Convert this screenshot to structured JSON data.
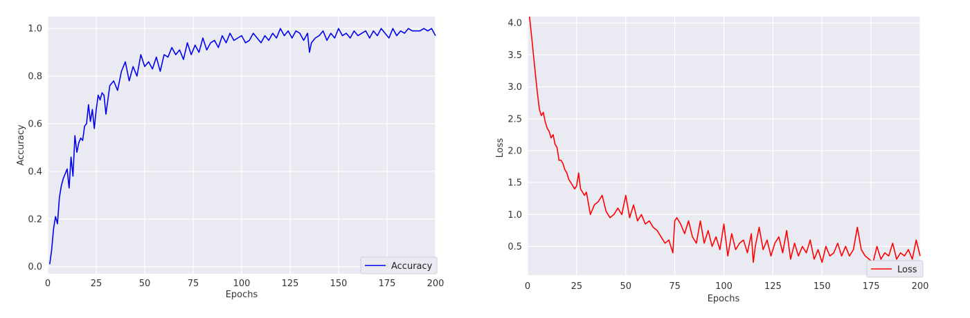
{
  "chart_data": [
    {
      "type": "line",
      "xlabel": "Epochs",
      "ylabel": "Accuracy",
      "xlim": [
        0,
        200
      ],
      "ylim": [
        -0.03,
        1.05
      ],
      "x_ticks": [
        0,
        25,
        50,
        75,
        100,
        125,
        150,
        175,
        200
      ],
      "y_ticks": [
        0.0,
        0.2,
        0.4,
        0.6,
        0.8,
        1.0
      ],
      "y_tick_labels": [
        "0.0",
        "0.2",
        "0.4",
        "0.6",
        "0.8",
        "1.0"
      ],
      "grid": true,
      "legend": "lower-right",
      "series": [
        {
          "name": "Accuracy",
          "color": "#0000ee",
          "x": [
            1,
            2,
            3,
            4,
            5,
            6,
            7,
            8,
            9,
            10,
            11,
            12,
            13,
            14,
            15,
            16,
            17,
            18,
            19,
            20,
            21,
            22,
            23,
            24,
            25,
            26,
            27,
            28,
            29,
            30,
            32,
            34,
            36,
            38,
            40,
            42,
            44,
            46,
            48,
            50,
            52,
            54,
            56,
            58,
            60,
            62,
            64,
            66,
            68,
            70,
            72,
            74,
            76,
            78,
            80,
            82,
            84,
            86,
            88,
            90,
            92,
            94,
            96,
            98,
            100,
            102,
            104,
            106,
            108,
            110,
            112,
            114,
            116,
            118,
            120,
            122,
            124,
            126,
            128,
            130,
            132,
            134,
            135,
            136,
            138,
            140,
            142,
            144,
            146,
            148,
            150,
            152,
            154,
            156,
            158,
            160,
            162,
            164,
            166,
            168,
            170,
            172,
            174,
            176,
            178,
            180,
            182,
            184,
            186,
            188,
            190,
            192,
            194,
            196,
            198,
            200
          ],
          "values": [
            0.01,
            0.07,
            0.16,
            0.21,
            0.18,
            0.29,
            0.34,
            0.37,
            0.39,
            0.41,
            0.33,
            0.46,
            0.38,
            0.55,
            0.48,
            0.52,
            0.54,
            0.53,
            0.59,
            0.6,
            0.68,
            0.61,
            0.66,
            0.58,
            0.66,
            0.72,
            0.7,
            0.73,
            0.72,
            0.64,
            0.76,
            0.78,
            0.74,
            0.82,
            0.86,
            0.78,
            0.84,
            0.8,
            0.89,
            0.84,
            0.86,
            0.83,
            0.88,
            0.82,
            0.89,
            0.88,
            0.92,
            0.89,
            0.91,
            0.87,
            0.94,
            0.89,
            0.93,
            0.9,
            0.96,
            0.91,
            0.94,
            0.95,
            0.92,
            0.97,
            0.94,
            0.98,
            0.95,
            0.96,
            0.97,
            0.94,
            0.95,
            0.98,
            0.96,
            0.94,
            0.97,
            0.95,
            0.98,
            0.96,
            1.0,
            0.97,
            0.99,
            0.96,
            0.99,
            0.98,
            0.95,
            0.98,
            0.9,
            0.94,
            0.96,
            0.97,
            0.99,
            0.95,
            0.98,
            0.96,
            1.0,
            0.97,
            0.98,
            0.96,
            0.99,
            0.97,
            0.98,
            0.99,
            0.96,
            0.99,
            0.97,
            1.0,
            0.98,
            0.96,
            1.0,
            0.97,
            0.99,
            0.98,
            1.0,
            0.99,
            0.99,
            0.99,
            1.0,
            0.99,
            1.0,
            0.97
          ]
        }
      ]
    },
    {
      "type": "line",
      "xlabel": "Epochs",
      "ylabel": "Loss",
      "xlim": [
        0,
        200
      ],
      "ylim": [
        0.05,
        4.1
      ],
      "x_ticks": [
        0,
        25,
        50,
        75,
        100,
        125,
        150,
        175,
        200
      ],
      "y_ticks": [
        0.5,
        1.0,
        1.5,
        2.0,
        2.5,
        3.0,
        3.5,
        4.0
      ],
      "y_tick_labels": [
        "0.5",
        "1.0",
        "1.5",
        "2.0",
        "2.5",
        "3.0",
        "3.5",
        "4.0"
      ],
      "grid": true,
      "legend": "lower-right",
      "series": [
        {
          "name": "Loss",
          "color": "#ff0000",
          "x": [
            1,
            2,
            3,
            4,
            5,
            6,
            7,
            8,
            9,
            10,
            11,
            12,
            13,
            14,
            15,
            16,
            17,
            18,
            19,
            20,
            21,
            22,
            23,
            24,
            25,
            26,
            27,
            28,
            29,
            30,
            32,
            34,
            36,
            38,
            40,
            42,
            44,
            46,
            48,
            50,
            52,
            54,
            56,
            58,
            60,
            62,
            64,
            66,
            68,
            70,
            72,
            74,
            75,
            76,
            78,
            80,
            82,
            84,
            86,
            88,
            90,
            92,
            94,
            96,
            98,
            100,
            102,
            104,
            106,
            108,
            110,
            112,
            114,
            115,
            116,
            118,
            120,
            122,
            124,
            126,
            128,
            130,
            132,
            134,
            136,
            138,
            140,
            142,
            144,
            146,
            148,
            150,
            152,
            154,
            156,
            158,
            160,
            162,
            164,
            166,
            168,
            170,
            172,
            174,
            176,
            178,
            180,
            182,
            184,
            186,
            188,
            190,
            192,
            194,
            196,
            198,
            200
          ],
          "values": [
            4.1,
            3.8,
            3.5,
            3.2,
            2.9,
            2.65,
            2.55,
            2.6,
            2.45,
            2.35,
            2.3,
            2.2,
            2.25,
            2.1,
            2.05,
            1.85,
            1.85,
            1.8,
            1.7,
            1.65,
            1.55,
            1.5,
            1.45,
            1.4,
            1.45,
            1.65,
            1.4,
            1.35,
            1.3,
            1.35,
            1.0,
            1.15,
            1.2,
            1.3,
            1.05,
            0.95,
            1.0,
            1.1,
            1.0,
            1.3,
            0.95,
            1.15,
            0.9,
            1.0,
            0.85,
            0.9,
            0.8,
            0.75,
            0.65,
            0.55,
            0.6,
            0.4,
            0.9,
            0.95,
            0.85,
            0.7,
            0.9,
            0.65,
            0.55,
            0.9,
            0.55,
            0.75,
            0.5,
            0.65,
            0.45,
            0.85,
            0.35,
            0.7,
            0.45,
            0.55,
            0.6,
            0.4,
            0.7,
            0.25,
            0.5,
            0.8,
            0.45,
            0.6,
            0.35,
            0.55,
            0.65,
            0.4,
            0.75,
            0.3,
            0.55,
            0.35,
            0.5,
            0.4,
            0.6,
            0.3,
            0.45,
            0.25,
            0.5,
            0.35,
            0.4,
            0.55,
            0.35,
            0.5,
            0.35,
            0.45,
            0.8,
            0.45,
            0.35,
            0.3,
            0.25,
            0.5,
            0.3,
            0.4,
            0.35,
            0.55,
            0.3,
            0.4,
            0.35,
            0.45,
            0.3,
            0.6,
            0.35
          ]
        }
      ]
    }
  ]
}
